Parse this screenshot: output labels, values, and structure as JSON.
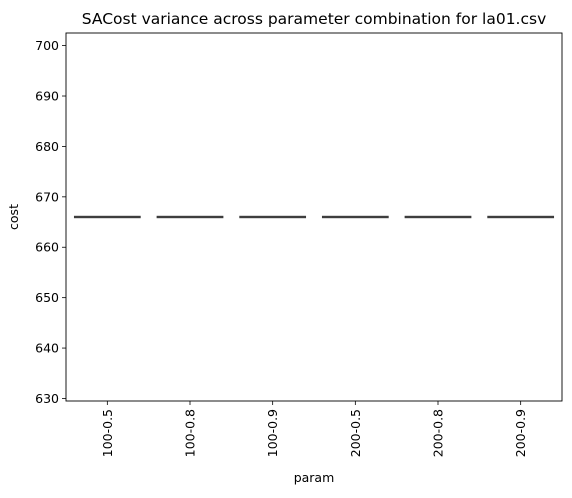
{
  "chart_data": {
    "type": "box",
    "title": "SACost variance across parameter combination for la01.csv",
    "xlabel": "param",
    "ylabel": "cost",
    "categories": [
      "100-0.5",
      "100-0.8",
      "100-0.9",
      "200-0.5",
      "200-0.8",
      "200-0.9"
    ],
    "values": [
      666,
      666,
      666,
      666,
      666,
      666
    ],
    "ylim": [
      629.5,
      702.5
    ],
    "yticks": [
      630,
      640,
      650,
      660,
      670,
      680,
      690,
      700
    ],
    "grid": false,
    "box_color": "#3a3a3a"
  }
}
